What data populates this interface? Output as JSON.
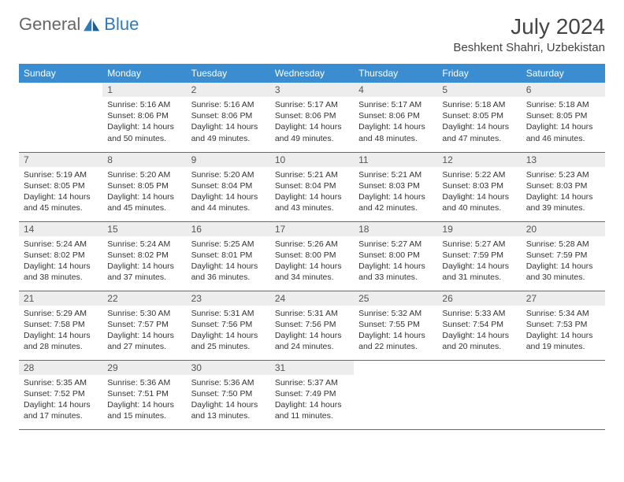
{
  "logo": {
    "text1": "General",
    "text2": "Blue"
  },
  "title": "July 2024",
  "location": "Beshkent Shahri, Uzbekistan",
  "colors": {
    "header_bg": "#3a8dd0",
    "row_divider": "#2b7bbd",
    "daynum_bg": "#ededed",
    "logo_accent": "#2b7bbd"
  },
  "weekdays": [
    "Sunday",
    "Monday",
    "Tuesday",
    "Wednesday",
    "Thursday",
    "Friday",
    "Saturday"
  ],
  "first_weekday_index": 1,
  "days": [
    {
      "n": 1,
      "sunrise": "5:16 AM",
      "sunset": "8:06 PM",
      "daylight": "14 hours and 50 minutes."
    },
    {
      "n": 2,
      "sunrise": "5:16 AM",
      "sunset": "8:06 PM",
      "daylight": "14 hours and 49 minutes."
    },
    {
      "n": 3,
      "sunrise": "5:17 AM",
      "sunset": "8:06 PM",
      "daylight": "14 hours and 49 minutes."
    },
    {
      "n": 4,
      "sunrise": "5:17 AM",
      "sunset": "8:06 PM",
      "daylight": "14 hours and 48 minutes."
    },
    {
      "n": 5,
      "sunrise": "5:18 AM",
      "sunset": "8:05 PM",
      "daylight": "14 hours and 47 minutes."
    },
    {
      "n": 6,
      "sunrise": "5:18 AM",
      "sunset": "8:05 PM",
      "daylight": "14 hours and 46 minutes."
    },
    {
      "n": 7,
      "sunrise": "5:19 AM",
      "sunset": "8:05 PM",
      "daylight": "14 hours and 45 minutes."
    },
    {
      "n": 8,
      "sunrise": "5:20 AM",
      "sunset": "8:05 PM",
      "daylight": "14 hours and 45 minutes."
    },
    {
      "n": 9,
      "sunrise": "5:20 AM",
      "sunset": "8:04 PM",
      "daylight": "14 hours and 44 minutes."
    },
    {
      "n": 10,
      "sunrise": "5:21 AM",
      "sunset": "8:04 PM",
      "daylight": "14 hours and 43 minutes."
    },
    {
      "n": 11,
      "sunrise": "5:21 AM",
      "sunset": "8:03 PM",
      "daylight": "14 hours and 42 minutes."
    },
    {
      "n": 12,
      "sunrise": "5:22 AM",
      "sunset": "8:03 PM",
      "daylight": "14 hours and 40 minutes."
    },
    {
      "n": 13,
      "sunrise": "5:23 AM",
      "sunset": "8:03 PM",
      "daylight": "14 hours and 39 minutes."
    },
    {
      "n": 14,
      "sunrise": "5:24 AM",
      "sunset": "8:02 PM",
      "daylight": "14 hours and 38 minutes."
    },
    {
      "n": 15,
      "sunrise": "5:24 AM",
      "sunset": "8:02 PM",
      "daylight": "14 hours and 37 minutes."
    },
    {
      "n": 16,
      "sunrise": "5:25 AM",
      "sunset": "8:01 PM",
      "daylight": "14 hours and 36 minutes."
    },
    {
      "n": 17,
      "sunrise": "5:26 AM",
      "sunset": "8:00 PM",
      "daylight": "14 hours and 34 minutes."
    },
    {
      "n": 18,
      "sunrise": "5:27 AM",
      "sunset": "8:00 PM",
      "daylight": "14 hours and 33 minutes."
    },
    {
      "n": 19,
      "sunrise": "5:27 AM",
      "sunset": "7:59 PM",
      "daylight": "14 hours and 31 minutes."
    },
    {
      "n": 20,
      "sunrise": "5:28 AM",
      "sunset": "7:59 PM",
      "daylight": "14 hours and 30 minutes."
    },
    {
      "n": 21,
      "sunrise": "5:29 AM",
      "sunset": "7:58 PM",
      "daylight": "14 hours and 28 minutes."
    },
    {
      "n": 22,
      "sunrise": "5:30 AM",
      "sunset": "7:57 PM",
      "daylight": "14 hours and 27 minutes."
    },
    {
      "n": 23,
      "sunrise": "5:31 AM",
      "sunset": "7:56 PM",
      "daylight": "14 hours and 25 minutes."
    },
    {
      "n": 24,
      "sunrise": "5:31 AM",
      "sunset": "7:56 PM",
      "daylight": "14 hours and 24 minutes."
    },
    {
      "n": 25,
      "sunrise": "5:32 AM",
      "sunset": "7:55 PM",
      "daylight": "14 hours and 22 minutes."
    },
    {
      "n": 26,
      "sunrise": "5:33 AM",
      "sunset": "7:54 PM",
      "daylight": "14 hours and 20 minutes."
    },
    {
      "n": 27,
      "sunrise": "5:34 AM",
      "sunset": "7:53 PM",
      "daylight": "14 hours and 19 minutes."
    },
    {
      "n": 28,
      "sunrise": "5:35 AM",
      "sunset": "7:52 PM",
      "daylight": "14 hours and 17 minutes."
    },
    {
      "n": 29,
      "sunrise": "5:36 AM",
      "sunset": "7:51 PM",
      "daylight": "14 hours and 15 minutes."
    },
    {
      "n": 30,
      "sunrise": "5:36 AM",
      "sunset": "7:50 PM",
      "daylight": "14 hours and 13 minutes."
    },
    {
      "n": 31,
      "sunrise": "5:37 AM",
      "sunset": "7:49 PM",
      "daylight": "14 hours and 11 minutes."
    }
  ],
  "labels": {
    "sunrise": "Sunrise:",
    "sunset": "Sunset:",
    "daylight": "Daylight:"
  }
}
